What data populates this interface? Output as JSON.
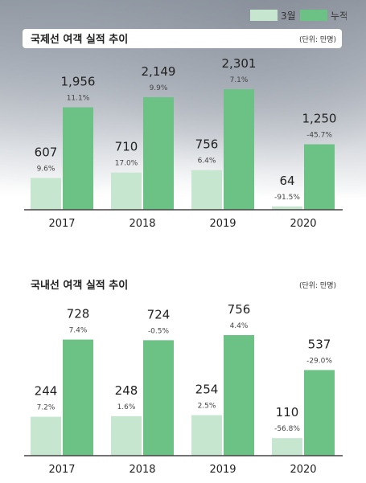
{
  "legend": {
    "monthly_label": "3월",
    "cumulative_label": "누적",
    "monthly_color": "#c6e6cf",
    "cumulative_color": "#6cc284"
  },
  "chart_data": [
    {
      "type": "bar",
      "title": "국제선 여객 실적 추이",
      "unit": "(단위: 만명)",
      "categories": [
        "2017",
        "2018",
        "2019",
        "2020"
      ],
      "series": [
        {
          "name": "3월",
          "values": [
            607,
            710,
            756,
            64
          ],
          "growth": [
            "9.6%",
            "17.0%",
            "6.4%",
            "-91.5%"
          ]
        },
        {
          "name": "누적",
          "values": [
            1956,
            2149,
            2301,
            1250
          ],
          "growth": [
            "11.1%",
            "9.9%",
            "7.1%",
            "-45.7%"
          ]
        }
      ],
      "value_labels": [
        [
          "607",
          "710",
          "756",
          "64"
        ],
        [
          "1,956",
          "2,149",
          "2,301",
          "1,250"
        ]
      ]
    },
    {
      "type": "bar",
      "title": "국내선 여객 실적 추이",
      "unit": "(단위: 만명)",
      "categories": [
        "2017",
        "2018",
        "2019",
        "2020"
      ],
      "series": [
        {
          "name": "3월",
          "values": [
            244,
            248,
            254,
            110
          ],
          "growth": [
            "7.2%",
            "1.6%",
            "2.5%",
            "-56.8%"
          ]
        },
        {
          "name": "누적",
          "values": [
            728,
            724,
            756,
            537
          ],
          "growth": [
            "7.4%",
            "-0.5%",
            "4.4%",
            "-29.0%"
          ]
        }
      ],
      "value_labels": [
        [
          "244",
          "248",
          "254",
          "110"
        ],
        [
          "728",
          "724",
          "756",
          "537"
        ]
      ]
    }
  ]
}
